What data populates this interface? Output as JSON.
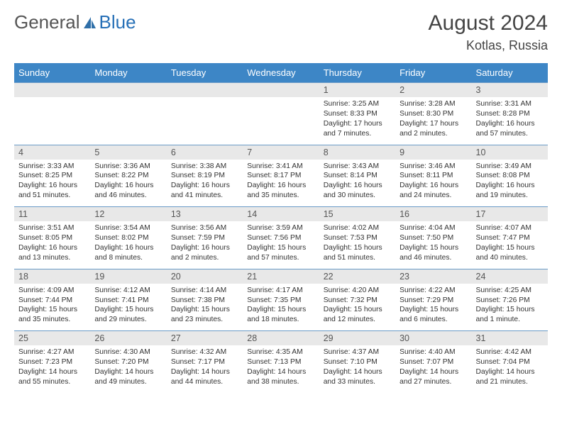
{
  "brand": {
    "part1": "General",
    "part2": "Blue"
  },
  "title": "August 2024",
  "location": "Kotlas, Russia",
  "colors": {
    "header_bg": "#3d86c6",
    "daynum_bg": "#e8e8e8",
    "rule": "#6a9bc7"
  },
  "font": {
    "title_size": 30,
    "location_size": 18,
    "head_size": 13,
    "daynum_size": 12.5,
    "cell_size": 10.3
  },
  "weekdays": [
    "Sunday",
    "Monday",
    "Tuesday",
    "Wednesday",
    "Thursday",
    "Friday",
    "Saturday"
  ],
  "weeks": [
    {
      "days": [
        {
          "num": "",
          "lines": [
            "",
            "",
            "",
            ""
          ]
        },
        {
          "num": "",
          "lines": [
            "",
            "",
            "",
            ""
          ]
        },
        {
          "num": "",
          "lines": [
            "",
            "",
            "",
            ""
          ]
        },
        {
          "num": "",
          "lines": [
            "",
            "",
            "",
            ""
          ]
        },
        {
          "num": "1",
          "lines": [
            "Sunrise: 3:25 AM",
            "Sunset: 8:33 PM",
            "Daylight: 17 hours",
            "and 7 minutes."
          ]
        },
        {
          "num": "2",
          "lines": [
            "Sunrise: 3:28 AM",
            "Sunset: 8:30 PM",
            "Daylight: 17 hours",
            "and 2 minutes."
          ]
        },
        {
          "num": "3",
          "lines": [
            "Sunrise: 3:31 AM",
            "Sunset: 8:28 PM",
            "Daylight: 16 hours",
            "and 57 minutes."
          ]
        }
      ]
    },
    {
      "days": [
        {
          "num": "4",
          "lines": [
            "Sunrise: 3:33 AM",
            "Sunset: 8:25 PM",
            "Daylight: 16 hours",
            "and 51 minutes."
          ]
        },
        {
          "num": "5",
          "lines": [
            "Sunrise: 3:36 AM",
            "Sunset: 8:22 PM",
            "Daylight: 16 hours",
            "and 46 minutes."
          ]
        },
        {
          "num": "6",
          "lines": [
            "Sunrise: 3:38 AM",
            "Sunset: 8:19 PM",
            "Daylight: 16 hours",
            "and 41 minutes."
          ]
        },
        {
          "num": "7",
          "lines": [
            "Sunrise: 3:41 AM",
            "Sunset: 8:17 PM",
            "Daylight: 16 hours",
            "and 35 minutes."
          ]
        },
        {
          "num": "8",
          "lines": [
            "Sunrise: 3:43 AM",
            "Sunset: 8:14 PM",
            "Daylight: 16 hours",
            "and 30 minutes."
          ]
        },
        {
          "num": "9",
          "lines": [
            "Sunrise: 3:46 AM",
            "Sunset: 8:11 PM",
            "Daylight: 16 hours",
            "and 24 minutes."
          ]
        },
        {
          "num": "10",
          "lines": [
            "Sunrise: 3:49 AM",
            "Sunset: 8:08 PM",
            "Daylight: 16 hours",
            "and 19 minutes."
          ]
        }
      ]
    },
    {
      "days": [
        {
          "num": "11",
          "lines": [
            "Sunrise: 3:51 AM",
            "Sunset: 8:05 PM",
            "Daylight: 16 hours",
            "and 13 minutes."
          ]
        },
        {
          "num": "12",
          "lines": [
            "Sunrise: 3:54 AM",
            "Sunset: 8:02 PM",
            "Daylight: 16 hours",
            "and 8 minutes."
          ]
        },
        {
          "num": "13",
          "lines": [
            "Sunrise: 3:56 AM",
            "Sunset: 7:59 PM",
            "Daylight: 16 hours",
            "and 2 minutes."
          ]
        },
        {
          "num": "14",
          "lines": [
            "Sunrise: 3:59 AM",
            "Sunset: 7:56 PM",
            "Daylight: 15 hours",
            "and 57 minutes."
          ]
        },
        {
          "num": "15",
          "lines": [
            "Sunrise: 4:02 AM",
            "Sunset: 7:53 PM",
            "Daylight: 15 hours",
            "and 51 minutes."
          ]
        },
        {
          "num": "16",
          "lines": [
            "Sunrise: 4:04 AM",
            "Sunset: 7:50 PM",
            "Daylight: 15 hours",
            "and 46 minutes."
          ]
        },
        {
          "num": "17",
          "lines": [
            "Sunrise: 4:07 AM",
            "Sunset: 7:47 PM",
            "Daylight: 15 hours",
            "and 40 minutes."
          ]
        }
      ]
    },
    {
      "days": [
        {
          "num": "18",
          "lines": [
            "Sunrise: 4:09 AM",
            "Sunset: 7:44 PM",
            "Daylight: 15 hours",
            "and 35 minutes."
          ]
        },
        {
          "num": "19",
          "lines": [
            "Sunrise: 4:12 AM",
            "Sunset: 7:41 PM",
            "Daylight: 15 hours",
            "and 29 minutes."
          ]
        },
        {
          "num": "20",
          "lines": [
            "Sunrise: 4:14 AM",
            "Sunset: 7:38 PM",
            "Daylight: 15 hours",
            "and 23 minutes."
          ]
        },
        {
          "num": "21",
          "lines": [
            "Sunrise: 4:17 AM",
            "Sunset: 7:35 PM",
            "Daylight: 15 hours",
            "and 18 minutes."
          ]
        },
        {
          "num": "22",
          "lines": [
            "Sunrise: 4:20 AM",
            "Sunset: 7:32 PM",
            "Daylight: 15 hours",
            "and 12 minutes."
          ]
        },
        {
          "num": "23",
          "lines": [
            "Sunrise: 4:22 AM",
            "Sunset: 7:29 PM",
            "Daylight: 15 hours",
            "and 6 minutes."
          ]
        },
        {
          "num": "24",
          "lines": [
            "Sunrise: 4:25 AM",
            "Sunset: 7:26 PM",
            "Daylight: 15 hours",
            "and 1 minute."
          ]
        }
      ]
    },
    {
      "days": [
        {
          "num": "25",
          "lines": [
            "Sunrise: 4:27 AM",
            "Sunset: 7:23 PM",
            "Daylight: 14 hours",
            "and 55 minutes."
          ]
        },
        {
          "num": "26",
          "lines": [
            "Sunrise: 4:30 AM",
            "Sunset: 7:20 PM",
            "Daylight: 14 hours",
            "and 49 minutes."
          ]
        },
        {
          "num": "27",
          "lines": [
            "Sunrise: 4:32 AM",
            "Sunset: 7:17 PM",
            "Daylight: 14 hours",
            "and 44 minutes."
          ]
        },
        {
          "num": "28",
          "lines": [
            "Sunrise: 4:35 AM",
            "Sunset: 7:13 PM",
            "Daylight: 14 hours",
            "and 38 minutes."
          ]
        },
        {
          "num": "29",
          "lines": [
            "Sunrise: 4:37 AM",
            "Sunset: 7:10 PM",
            "Daylight: 14 hours",
            "and 33 minutes."
          ]
        },
        {
          "num": "30",
          "lines": [
            "Sunrise: 4:40 AM",
            "Sunset: 7:07 PM",
            "Daylight: 14 hours",
            "and 27 minutes."
          ]
        },
        {
          "num": "31",
          "lines": [
            "Sunrise: 4:42 AM",
            "Sunset: 7:04 PM",
            "Daylight: 14 hours",
            "and 21 minutes."
          ]
        }
      ]
    }
  ]
}
